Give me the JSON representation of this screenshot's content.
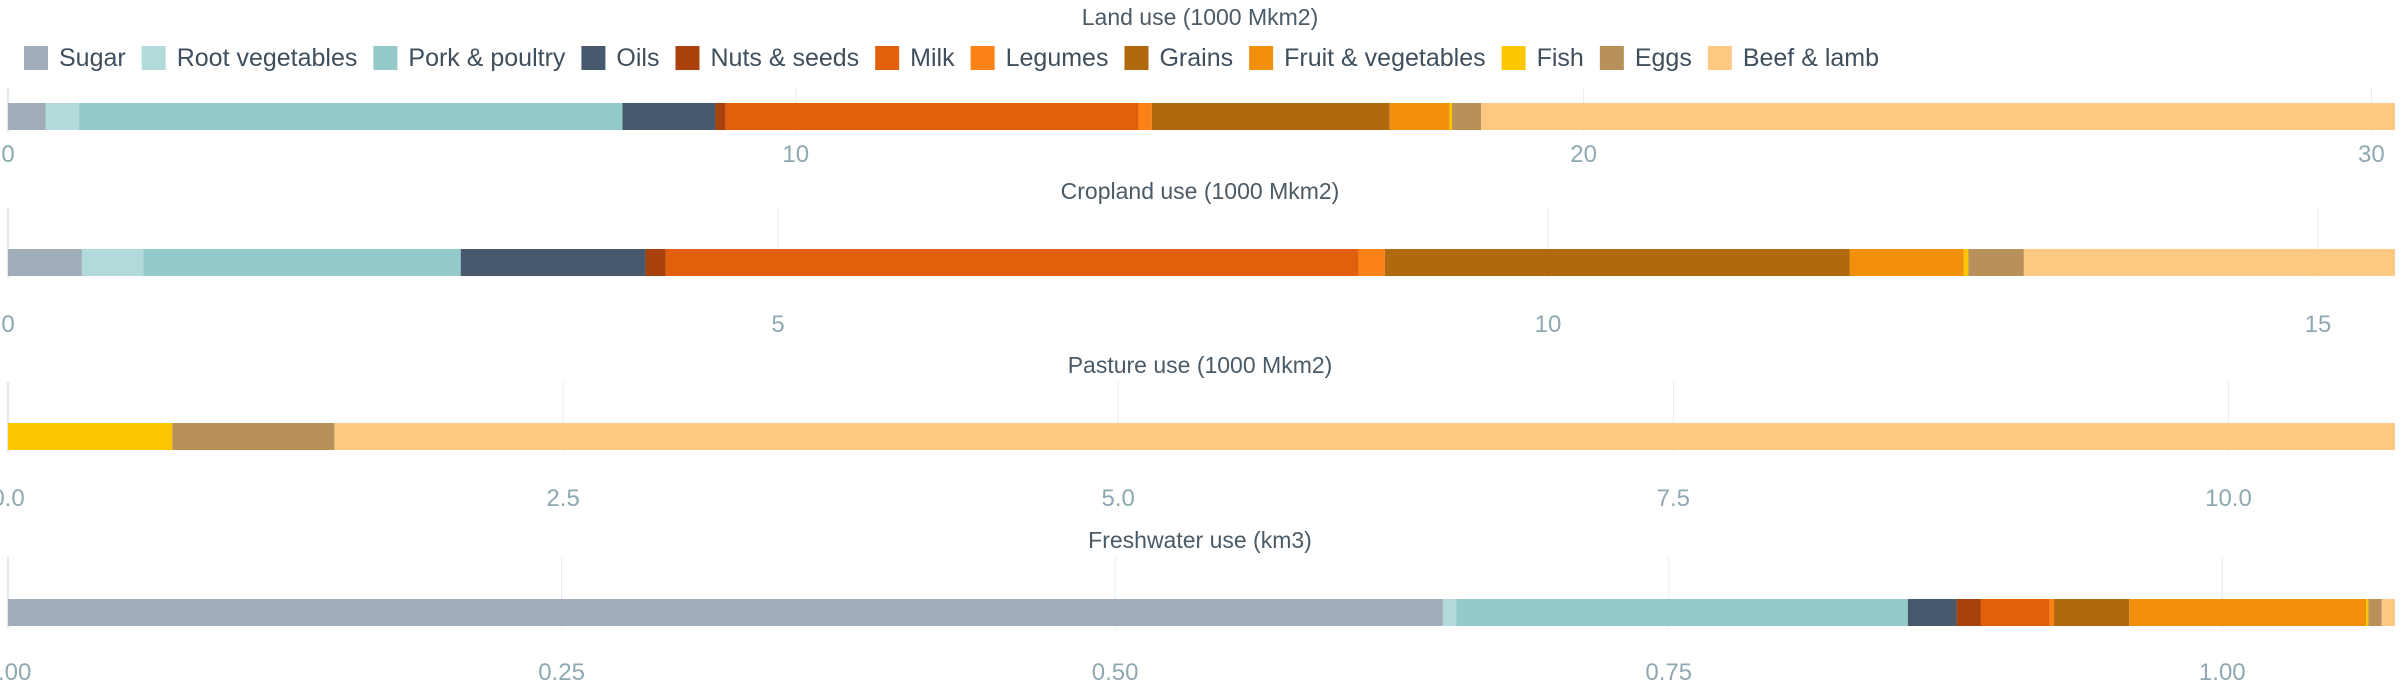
{
  "chart_data": {
    "type": "bar",
    "orientation": "horizontal",
    "stacked": true,
    "grid": true,
    "legend": {
      "placement": "top-left",
      "items": [
        {
          "name": "Sugar",
          "color": "#a0adb9"
        },
        {
          "name": "Root vegetables",
          "color": "#b3dada"
        },
        {
          "name": "Pork & poultry",
          "color": "#95caca"
        },
        {
          "name": "Oils",
          "color": "#475a6d"
        },
        {
          "name": "Nuts & seeds",
          "color": "#a8410c"
        },
        {
          "name": "Milk",
          "color": "#e1600c"
        },
        {
          "name": "Legumes",
          "color": "#fb8217"
        },
        {
          "name": "Grains",
          "color": "#b06a0d"
        },
        {
          "name": "Fruit & vegetables",
          "color": "#f2900d"
        },
        {
          "name": "Fish",
          "color": "#fcc701"
        },
        {
          "name": "Eggs",
          "color": "#b79159"
        },
        {
          "name": "Beef & lamb",
          "color": "#fdc882"
        }
      ]
    },
    "panels": [
      {
        "title": "Land use (1000 Mkm2)",
        "xlim": [
          0,
          30.3
        ],
        "ticks": [
          {
            "value": 0,
            "label": "0"
          },
          {
            "value": 10,
            "label": "10"
          },
          {
            "value": 20,
            "label": "20"
          },
          {
            "value": 30,
            "label": "30"
          }
        ],
        "values": [
          0.48,
          0.42,
          6.9,
          1.18,
          0.13,
          5.24,
          0.17,
          3.02,
          0.76,
          0.03,
          0.37,
          11.6
        ]
      },
      {
        "title": "Cropland use (1000 Mkm2)",
        "xlim": [
          0,
          15.5
        ],
        "ticks": [
          {
            "value": 0,
            "label": "0"
          },
          {
            "value": 5,
            "label": "5"
          },
          {
            "value": 10,
            "label": "10"
          },
          {
            "value": 15,
            "label": "15"
          }
        ],
        "values": [
          0.48,
          0.4,
          2.06,
          1.2,
          0.13,
          4.5,
          0.17,
          3.02,
          0.74,
          0.03,
          0.36,
          2.41
        ]
      },
      {
        "title": "Pasture use (1000 Mkm2)",
        "xlim": [
          0,
          10.75
        ],
        "ticks": [
          {
            "value": 0,
            "label": "0.0"
          },
          {
            "value": 2.5,
            "label": "2.5"
          },
          {
            "value": 5,
            "label": "5.0"
          },
          {
            "value": 7.5,
            "label": "7.5"
          },
          {
            "value": 10,
            "label": "10.0"
          }
        ],
        "values": [
          0,
          0,
          0,
          0,
          0,
          0,
          0,
          0,
          0,
          0.74,
          0.73,
          9.28
        ]
      },
      {
        "title": "Freshwater use (km3)",
        "xlim": [
          0,
          1.078
        ],
        "ticks": [
          {
            "value": 0,
            "label": "0.00"
          },
          {
            "value": 0.25,
            "label": "0.25"
          },
          {
            "value": 0.5,
            "label": "0.50"
          },
          {
            "value": 0.75,
            "label": "0.75"
          },
          {
            "value": 1,
            "label": "1.00"
          }
        ],
        "values": [
          0.648,
          0.006,
          0.204,
          0.022,
          0.011,
          0.031,
          0.002,
          0.034,
          0.107,
          0.001,
          0.006,
          0.006
        ]
      }
    ]
  }
}
